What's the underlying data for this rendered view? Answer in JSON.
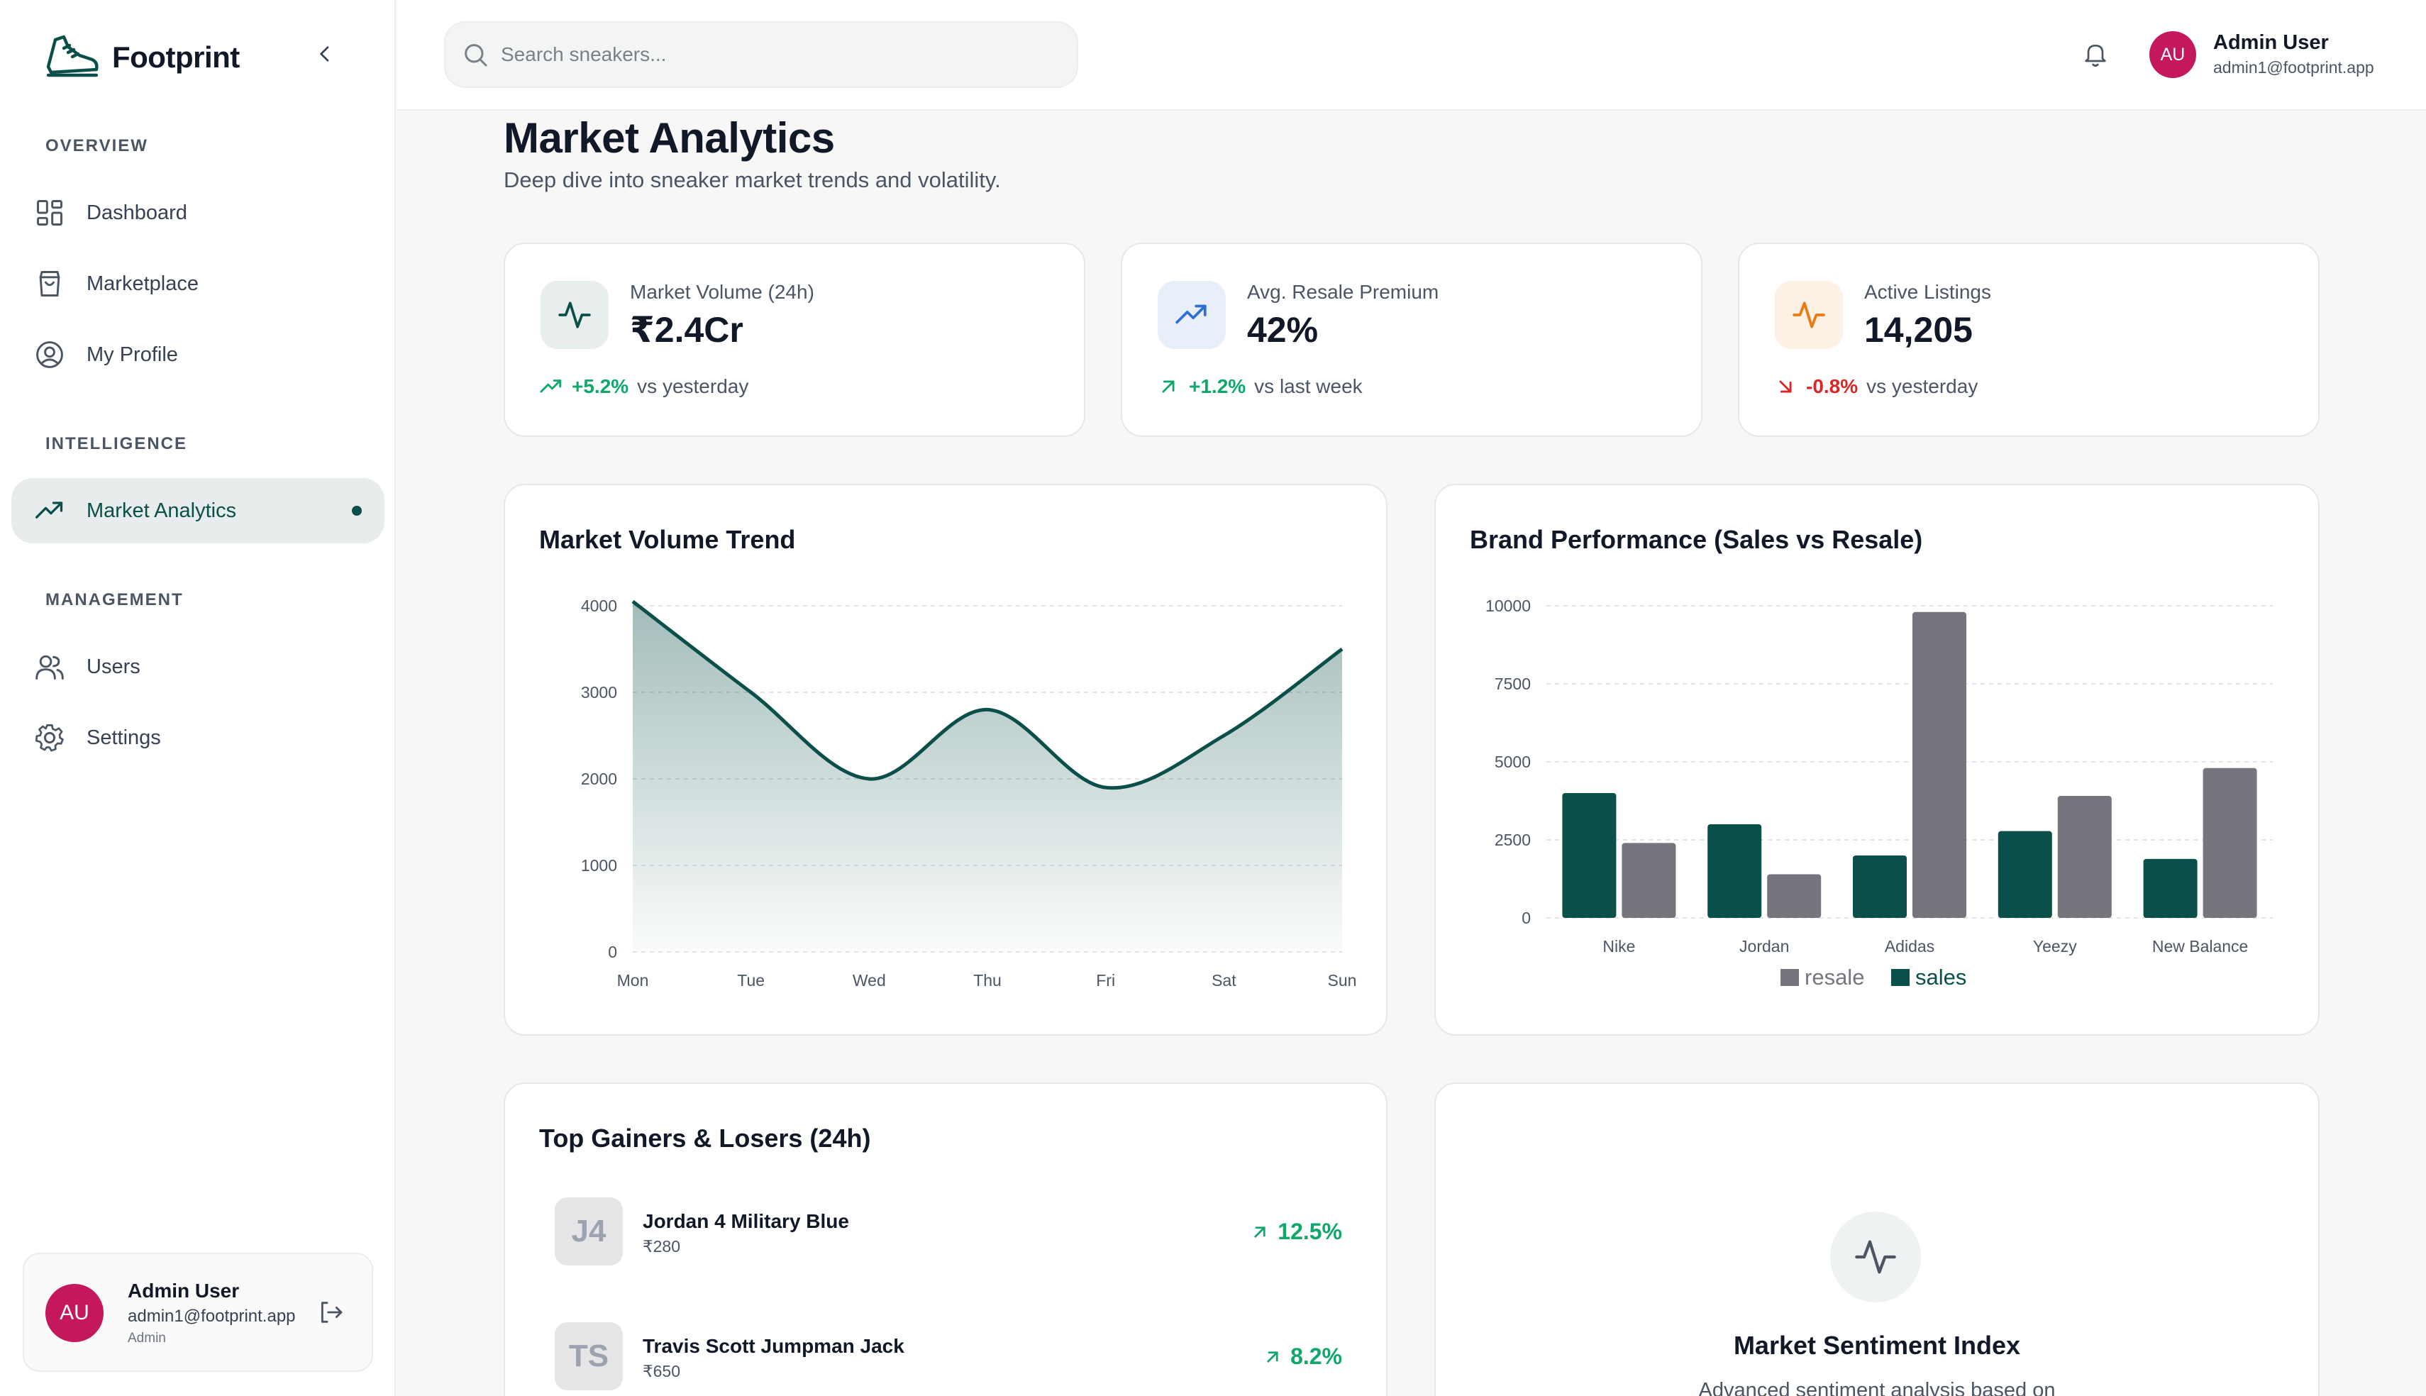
{
  "brand": {
    "name": "Footprint"
  },
  "sidebar": {
    "sections": [
      {
        "label": "OVERVIEW"
      },
      {
        "label": "INTELLIGENCE"
      },
      {
        "label": "MANAGEMENT"
      }
    ],
    "items": [
      {
        "label": "Dashboard",
        "icon": "dashboard-icon"
      },
      {
        "label": "Marketplace",
        "icon": "shopping-bag-icon"
      },
      {
        "label": "My Profile",
        "icon": "user-circle-icon"
      },
      {
        "label": "Market Analytics",
        "icon": "trending-up-icon",
        "active": true
      },
      {
        "label": "Users",
        "icon": "users-icon"
      },
      {
        "label": "Settings",
        "icon": "gear-icon"
      }
    ],
    "user": {
      "initials": "AU",
      "name": "Admin User",
      "email": "admin1@footprint.app",
      "role": "Admin"
    }
  },
  "header": {
    "search_placeholder": "Search sneakers...",
    "user": {
      "initials": "AU",
      "name": "Admin User",
      "email": "admin1@footprint.app"
    }
  },
  "page": {
    "title": "Market Analytics",
    "subtitle": "Deep dive into sneaker market trends and volatility."
  },
  "stats": [
    {
      "label": "Market Volume (24h)",
      "value": "₹2.4Cr",
      "change": "+5.2%",
      "comparison": "vs yesterday",
      "direction": "up",
      "color": "#0b4f4b"
    },
    {
      "label": "Avg. Resale Premium",
      "value": "42%",
      "change": "+1.2%",
      "comparison": "vs last week",
      "direction": "up",
      "color": "#2f6fd6"
    },
    {
      "label": "Active Listings",
      "value": "14,205",
      "change": "-0.8%",
      "comparison": "vs yesterday",
      "direction": "down",
      "color": "#ea7a12"
    }
  ],
  "volume_chart": {
    "title": "Market Volume Trend"
  },
  "brand_chart": {
    "title": "Brand Performance (Sales vs Resale)"
  },
  "chart_data": [
    {
      "type": "area",
      "title": "Market Volume Trend",
      "categories": [
        "Mon",
        "Tue",
        "Wed",
        "Thu",
        "Fri",
        "Sat",
        "Sun"
      ],
      "values": [
        4050,
        3000,
        2000,
        2800,
        1900,
        2500,
        3500
      ],
      "ylim": [
        0,
        4000
      ],
      "yticks": [
        0,
        1000,
        2000,
        3000,
        4000
      ],
      "grid": true,
      "color": "#0b4f4b"
    },
    {
      "type": "bar",
      "title": "Brand Performance (Sales vs Resale)",
      "categories": [
        "Nike",
        "Jordan",
        "Adidas",
        "Yeezy",
        "New Balance"
      ],
      "series": [
        {
          "name": "sales",
          "values": [
            4000,
            3000,
            2000,
            2780,
            1890
          ],
          "color": "#0b4f4b"
        },
        {
          "name": "resale",
          "values": [
            2400,
            1398,
            9800,
            3908,
            4800
          ],
          "color": "#76757e"
        }
      ],
      "ylim": [
        0,
        10000
      ],
      "yticks": [
        0,
        2500,
        5000,
        7500,
        10000
      ],
      "legend": {
        "placement": "bottom",
        "order": [
          "resale",
          "sales"
        ]
      },
      "grid": true
    }
  ],
  "movers": {
    "title": "Top Gainers & Losers (24h)",
    "items": [
      {
        "initials": "J4",
        "name": "Jordan 4 Military Blue",
        "price": "₹280",
        "change": "12.5%"
      },
      {
        "initials": "TS",
        "name": "Travis Scott Jumpman Jack",
        "price": "₹650",
        "change": "8.2%"
      }
    ]
  },
  "sentiment": {
    "title": "Market Sentiment Index",
    "description": "Advanced sentiment analysis based on"
  }
}
